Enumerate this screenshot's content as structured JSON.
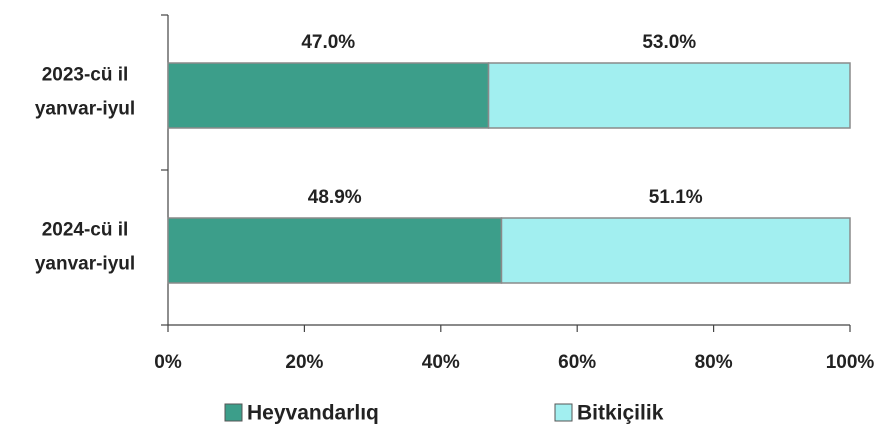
{
  "chart_data": {
    "type": "stacked-bar-horizontal",
    "categories": [
      [
        "2023-cü il",
        "yanvar-iyul"
      ],
      [
        "2024-cü il",
        "yanvar-iyul"
      ]
    ],
    "series": [
      {
        "name": "Heyvandarlıq",
        "color": "#3c9e8a",
        "values": [
          47.0,
          48.9
        ],
        "value_labels": [
          "47.0%",
          "48.9%"
        ]
      },
      {
        "name": "Bitkiçilik",
        "color": "#a2eff0",
        "values": [
          53.0,
          51.1
        ],
        "value_labels": [
          "53.0%",
          "51.1%"
        ]
      }
    ],
    "xlim": [
      0,
      100
    ],
    "xticks": [
      {
        "value": 0,
        "label": "0%"
      },
      {
        "value": 20,
        "label": "20%"
      },
      {
        "value": 40,
        "label": "40%"
      },
      {
        "value": 60,
        "label": "60%"
      },
      {
        "value": 80,
        "label": "80%"
      },
      {
        "value": 100,
        "label": "100%"
      }
    ],
    "legend": "bottom"
  }
}
